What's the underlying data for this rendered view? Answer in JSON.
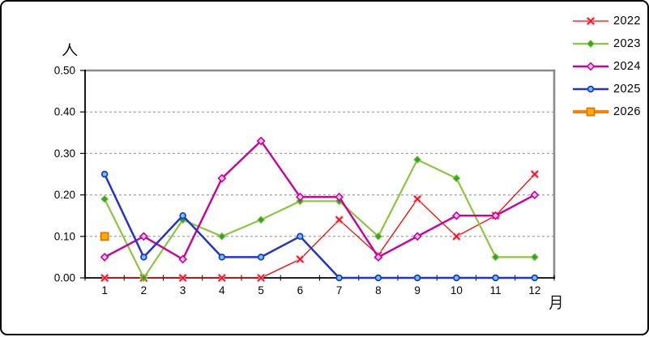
{
  "chart_window": {
    "background": "#FFFFFF",
    "border_color": "#000000"
  },
  "chart_data": {
    "type": "line",
    "title": "",
    "ylabel": "人",
    "xlabel": "月",
    "ylim": [
      0,
      0.5
    ],
    "ytick_labels": [
      "0.00",
      "0.10",
      "0.20",
      "0.30",
      "0.40",
      "0.50"
    ],
    "grid": "horizontal dashed gridlines at each 0.10",
    "legend_position": "top-right, outside plot, no frame",
    "categories": [
      "1",
      "2",
      "3",
      "4",
      "5",
      "6",
      "7",
      "8",
      "9",
      "10",
      "11",
      "12"
    ],
    "series": [
      {
        "name": "2022",
        "color": "#FF0000",
        "marker": "x",
        "marker_fill": "#FF9FC0",
        "line_width": 1.3,
        "values": [
          0,
          0,
          0,
          0,
          0,
          0.045,
          0.14,
          0.055,
          0.19,
          0.1,
          0.15,
          0.25
        ]
      },
      {
        "name": "2023",
        "color": "#8CC63F",
        "marker": "diamond-filled",
        "marker_fill": "#2FA32F",
        "line_width": 2.2,
        "values": [
          0.19,
          0,
          0.14,
          0.1,
          0.14,
          0.185,
          0.185,
          0.1,
          0.285,
          0.24,
          0.05,
          0.05
        ]
      },
      {
        "name": "2024",
        "color": "#CC0099",
        "marker": "diamond-open",
        "marker_fill": "#FFC2EC",
        "line_width": 2.4,
        "values": [
          0.05,
          0.1,
          0.045,
          0.24,
          0.33,
          0.195,
          0.195,
          0.05,
          0.1,
          0.15,
          0.15,
          0.2
        ]
      },
      {
        "name": "2025",
        "color": "#2233CC",
        "marker": "circle-open",
        "marker_fill": "#5FCFFF",
        "line_width": 2.5,
        "values": [
          0.25,
          0.05,
          0.15,
          0.05,
          0.05,
          0.1,
          0,
          0,
          0,
          0,
          0,
          0
        ]
      },
      {
        "name": "2026",
        "color": "#FF8000",
        "marker": "square-filled",
        "marker_fill": "#FFAE00",
        "marker_edge": "#E07000",
        "line_width": 4,
        "values": [
          0.1,
          null,
          null,
          null,
          null,
          null,
          null,
          null,
          null,
          null,
          null,
          null
        ]
      }
    ]
  }
}
